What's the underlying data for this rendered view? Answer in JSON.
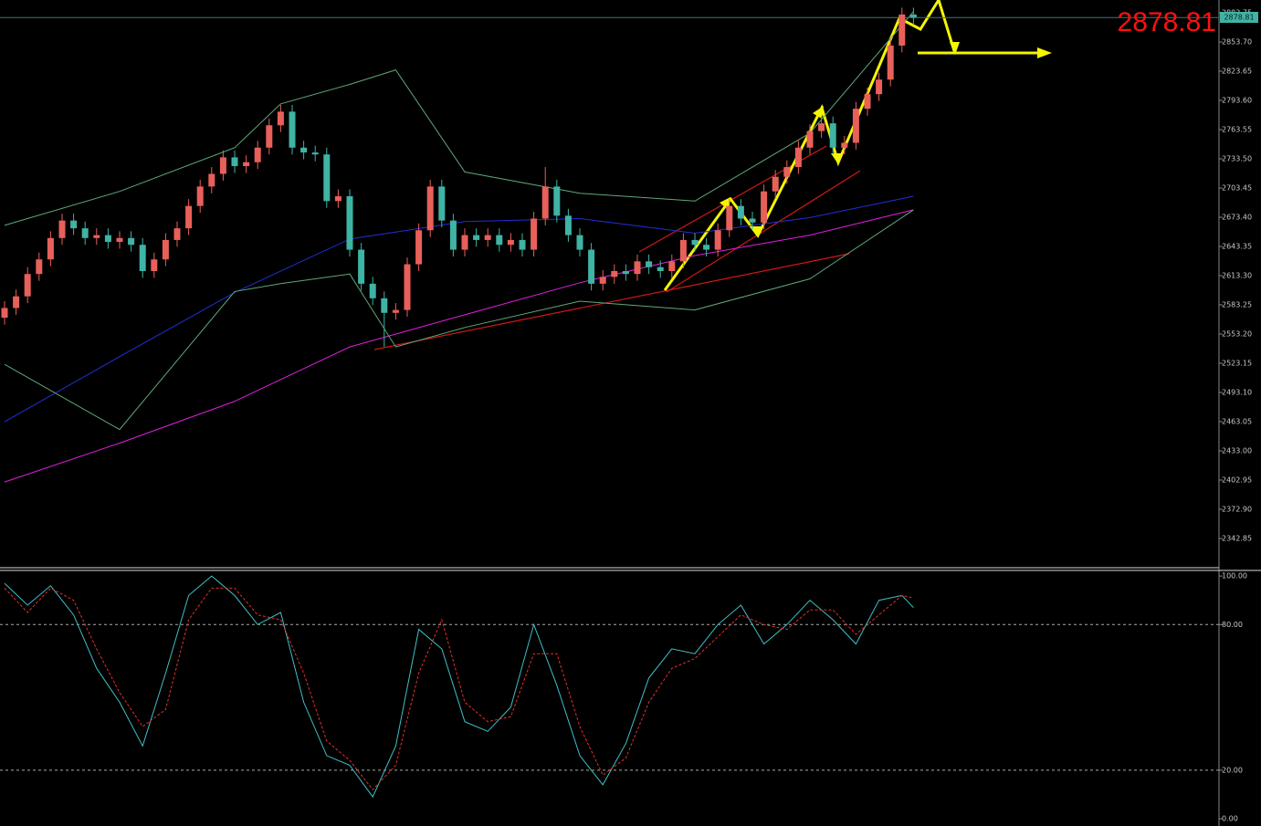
{
  "chart_data": [
    {
      "type": "candlestick",
      "last_price": 2878.81,
      "ylim": [
        2312.8,
        2896.9
      ],
      "yticks": [
        {
          "value": 2883.75,
          "label": "2883.75"
        },
        {
          "value": 2853.7,
          "label": "2853.70"
        },
        {
          "value": 2823.65,
          "label": "2823.65"
        },
        {
          "value": 2793.6,
          "label": "2793.60"
        },
        {
          "value": 2763.55,
          "label": "2763.55"
        },
        {
          "value": 2733.5,
          "label": "2733.50"
        },
        {
          "value": 2703.45,
          "label": "2703.45"
        },
        {
          "value": 2673.4,
          "label": "2673.40"
        },
        {
          "value": 2643.35,
          "label": "2643.35"
        },
        {
          "value": 2613.3,
          "label": "2613.30"
        },
        {
          "value": 2583.25,
          "label": "2583.25"
        },
        {
          "value": 2553.2,
          "label": "2553.20"
        },
        {
          "value": 2523.15,
          "label": "2523.15"
        },
        {
          "value": 2493.1,
          "label": "2493.10"
        },
        {
          "value": 2463.05,
          "label": "2463.05"
        },
        {
          "value": 2433,
          "label": "2433.00"
        },
        {
          "value": 2402.95,
          "label": "2402.95"
        },
        {
          "value": 2372.9,
          "label": "2372.90"
        },
        {
          "value": 2342.85,
          "label": "2342.85"
        }
      ],
      "up_color": "#e8605a",
      "down_color": "#3fb3a4",
      "open": [
        2570,
        2580,
        2592,
        2615,
        2630,
        2652,
        2670,
        2662,
        2652,
        2655,
        2648,
        2652,
        2645,
        2618,
        2630,
        2650,
        2662,
        2685,
        2705,
        2718,
        2735,
        2726,
        2730,
        2745,
        2768,
        2782,
        2745,
        2740,
        2738,
        2690,
        2695,
        2640,
        2605,
        2590,
        2575,
        2578,
        2625,
        2660,
        2705,
        2670,
        2640,
        2655,
        2650,
        2655,
        2645,
        2650,
        2640,
        2672,
        2705,
        2675,
        2655,
        2640,
        2605,
        2612,
        2618,
        2615,
        2628,
        2622,
        2618,
        2628,
        2650,
        2645,
        2640,
        2660,
        2685,
        2672,
        2668,
        2700,
        2715,
        2725,
        2745,
        2762,
        2770,
        2745,
        2750,
        2785,
        2800,
        2815,
        2850,
        2882
      ],
      "high": [
        2587,
        2599,
        2622,
        2637,
        2659,
        2677,
        2677,
        2669,
        2662,
        2662,
        2659,
        2659,
        2652,
        2637,
        2657,
        2669,
        2692,
        2712,
        2725,
        2742,
        2742,
        2737,
        2752,
        2775,
        2789,
        2789,
        2752,
        2747,
        2745,
        2702,
        2702,
        2647,
        2612,
        2597,
        2585,
        2632,
        2667,
        2712,
        2712,
        2677,
        2662,
        2662,
        2662,
        2662,
        2657,
        2657,
        2679,
        2725,
        2712,
        2682,
        2662,
        2647,
        2619,
        2625,
        2625,
        2635,
        2635,
        2629,
        2635,
        2657,
        2657,
        2652,
        2667,
        2692,
        2692,
        2679,
        2707,
        2722,
        2732,
        2752,
        2769,
        2777,
        2777,
        2757,
        2792,
        2807,
        2822,
        2857,
        2889,
        2889
      ],
      "low": [
        2563,
        2573,
        2585,
        2608,
        2623,
        2645,
        2655,
        2645,
        2645,
        2641,
        2641,
        2638,
        2611,
        2611,
        2623,
        2643,
        2655,
        2678,
        2698,
        2711,
        2719,
        2719,
        2723,
        2738,
        2761,
        2738,
        2733,
        2731,
        2683,
        2683,
        2633,
        2598,
        2583,
        2540,
        2568,
        2571,
        2618,
        2653,
        2663,
        2633,
        2633,
        2643,
        2643,
        2638,
        2638,
        2633,
        2633,
        2665,
        2668,
        2648,
        2633,
        2598,
        2598,
        2605,
        2608,
        2608,
        2615,
        2611,
        2611,
        2621,
        2638,
        2633,
        2633,
        2653,
        2665,
        2661,
        2661,
        2693,
        2708,
        2718,
        2738,
        2755,
        2738,
        2738,
        2743,
        2778,
        2793,
        2808,
        2843,
        2871
      ],
      "close": [
        2580,
        2592,
        2615,
        2630,
        2652,
        2670,
        2662,
        2652,
        2655,
        2648,
        2652,
        2645,
        2618,
        2630,
        2650,
        2662,
        2685,
        2705,
        2718,
        2735,
        2726,
        2730,
        2745,
        2768,
        2782,
        2745,
        2740,
        2738,
        2690,
        2695,
        2640,
        2605,
        2590,
        2575,
        2578,
        2625,
        2660,
        2705,
        2670,
        2640,
        2655,
        2650,
        2655,
        2645,
        2650,
        2640,
        2672,
        2705,
        2675,
        2655,
        2640,
        2605,
        2612,
        2618,
        2615,
        2628,
        2622,
        2618,
        2628,
        2650,
        2645,
        2640,
        2660,
        2685,
        2672,
        2668,
        2700,
        2715,
        2725,
        2745,
        2762,
        2770,
        2745,
        2750,
        2785,
        2800,
        2815,
        2850,
        2882,
        2878.81
      ],
      "lines": [
        {
          "color": "#2030d8",
          "x": [
            0,
            10,
            20,
            30,
            40,
            50,
            60,
            70,
            79
          ],
          "values": [
            2463,
            2530,
            2596,
            2651,
            2669,
            2672,
            2657,
            2673,
            2695
          ]
        },
        {
          "color": "#e020e0",
          "x": [
            0,
            10,
            20,
            30,
            40,
            50,
            60,
            70,
            79
          ],
          "values": [
            2401,
            2441,
            2484,
            2540,
            2573,
            2606,
            2634,
            2655,
            2681
          ]
        },
        {
          "color": "#5fa878",
          "x": [
            0,
            10,
            20,
            24,
            30,
            34,
            40,
            50,
            60,
            70,
            79
          ],
          "values": [
            2665,
            2700,
            2745,
            2790,
            2810,
            2825,
            2720,
            2698,
            2690,
            2760,
            2885
          ]
        },
        {
          "color": "#5fa878",
          "x": [
            0,
            10,
            20,
            24,
            30,
            34,
            40,
            50,
            60,
            70,
            79
          ],
          "values": [
            2522,
            2455,
            2597,
            2605,
            2615,
            2540,
            2560,
            2587,
            2578,
            2610,
            2681
          ]
        }
      ]
    },
    {
      "type": "line",
      "ylim": [
        -3,
        102.3
      ],
      "yticks": [
        {
          "value": 100,
          "label": "100.00"
        },
        {
          "value": 80,
          "label": "80.00"
        },
        {
          "value": 20,
          "label": "20.00"
        },
        {
          "value": 0,
          "label": "0.00"
        }
      ],
      "levels": [
        80,
        20
      ],
      "x": [
        0,
        2,
        4,
        6,
        8,
        10,
        12,
        14,
        16,
        18,
        20,
        22,
        24,
        26,
        28,
        30,
        32,
        34,
        36,
        38,
        40,
        42,
        44,
        46,
        48,
        50,
        52,
        54,
        56,
        58,
        60,
        62,
        64,
        66,
        68,
        70,
        72,
        74,
        76,
        78,
        79
      ],
      "series": [
        {
          "color": "#40c0c8",
          "dash": false,
          "values": [
            97,
            88,
            96,
            84,
            62,
            48,
            30,
            60,
            92,
            100,
            92,
            80,
            85,
            48,
            26,
            22,
            9,
            30,
            78,
            70,
            40,
            36,
            46,
            80,
            55,
            26,
            14,
            31,
            58,
            70,
            68,
            80,
            88,
            72,
            80,
            90,
            82,
            72,
            90,
            92,
            87
          ]
        },
        {
          "color": "#e03030",
          "dash": true,
          "values": [
            95,
            85,
            95,
            90,
            70,
            52,
            38,
            45,
            82,
            95,
            95,
            84,
            82,
            60,
            32,
            24,
            12,
            22,
            60,
            82,
            48,
            40,
            42,
            68,
            68,
            38,
            18,
            25,
            48,
            62,
            66,
            75,
            84,
            80,
            78,
            86,
            86,
            76,
            84,
            92,
            91
          ]
        }
      ]
    }
  ]
}
